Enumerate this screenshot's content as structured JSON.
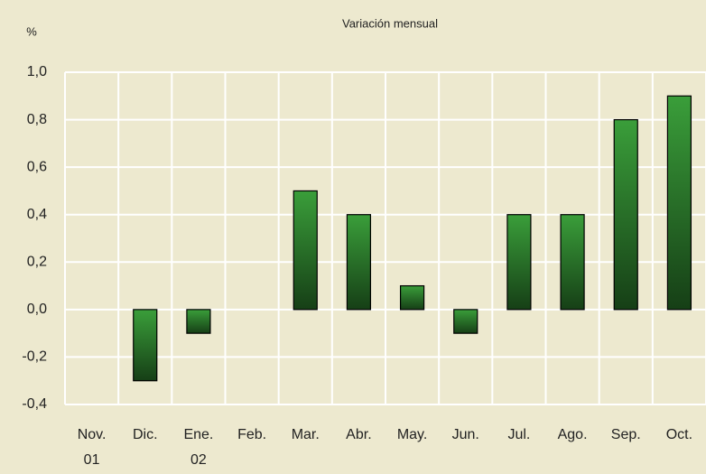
{
  "chart_data": {
    "type": "bar",
    "title": "Variación mensual",
    "y_label": "%",
    "categories": [
      [
        "Nov.",
        "01"
      ],
      [
        "Dic."
      ],
      [
        "Ene.",
        "02"
      ],
      [
        "Feb."
      ],
      [
        "Mar."
      ],
      [
        "Abr."
      ],
      [
        "May."
      ],
      [
        "Jun."
      ],
      [
        "Jul."
      ],
      [
        "Ago."
      ],
      [
        "Sep."
      ],
      [
        "Oct."
      ]
    ],
    "values": [
      0,
      -0.3,
      -0.1,
      0,
      0.5,
      0.4,
      0.1,
      -0.1,
      0.4,
      0.4,
      0.8,
      0.9
    ],
    "color": "#2f8a2f",
    "ylim": [
      -0.4,
      1.0
    ],
    "yticks": [
      {
        "value": -0.4,
        "label": "-0,4"
      },
      {
        "value": -0.2,
        "label": "-0,2"
      },
      {
        "value": 0,
        "label": "0,0"
      },
      {
        "value": 0.2,
        "label": "0,2"
      },
      {
        "value": 0.4,
        "label": "0,4"
      },
      {
        "value": 0.6,
        "label": "0,6"
      },
      {
        "value": 0.8,
        "label": "0,8"
      },
      {
        "value": 1.0,
        "label": "1,0"
      }
    ],
    "grid": true
  }
}
